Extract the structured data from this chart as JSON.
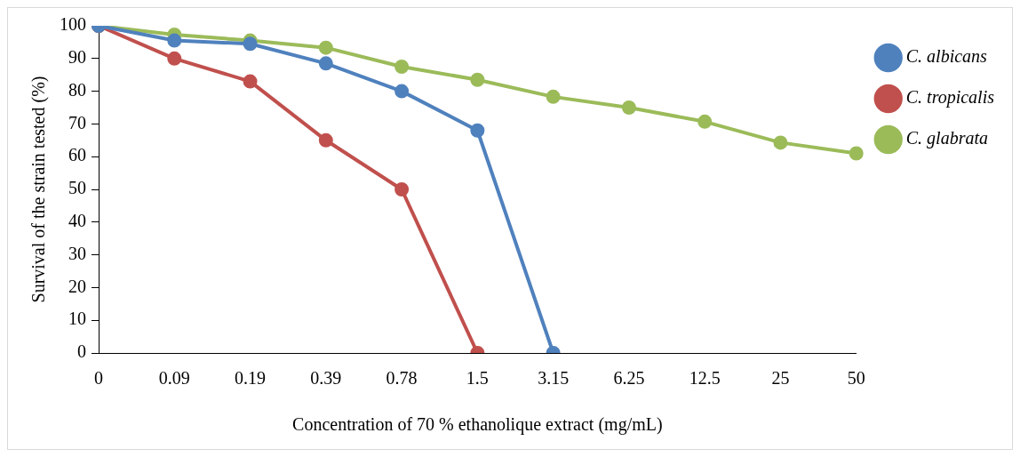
{
  "chart_data": {
    "type": "line",
    "xlabel": "Concentration of 70 % ethanolique extract (mg/mL)",
    "ylabel": "Survival of the strain tested (%)",
    "categories": [
      "0",
      "0.09",
      "0.19",
      "0.39",
      "0.78",
      "1.5",
      "3.15",
      "6.25",
      "12.5",
      "25",
      "50"
    ],
    "series": [
      {
        "name": "C. albicans",
        "color": "#4f81bd",
        "values": [
          100,
          95.5,
          94.5,
          88.5,
          80,
          68,
          0,
          null,
          null,
          null,
          null
        ]
      },
      {
        "name": "C. tropicalis",
        "color": "#c0504d",
        "values": [
          100,
          90,
          83,
          65,
          50,
          0,
          null,
          null,
          null,
          null,
          null
        ]
      },
      {
        "name": "C. glabrata",
        "color": "#9bbb59",
        "values": [
          100,
          97.3,
          95.5,
          93.3,
          87.5,
          83.5,
          78.3,
          75,
          70.7,
          64.3,
          61
        ]
      }
    ],
    "ylim": [
      0,
      100
    ],
    "yticks": [
      0,
      10,
      20,
      30,
      40,
      50,
      60,
      70,
      80,
      90,
      100
    ],
    "grid": false,
    "legend": "right",
    "marker": "circle",
    "line_style": "solid"
  }
}
